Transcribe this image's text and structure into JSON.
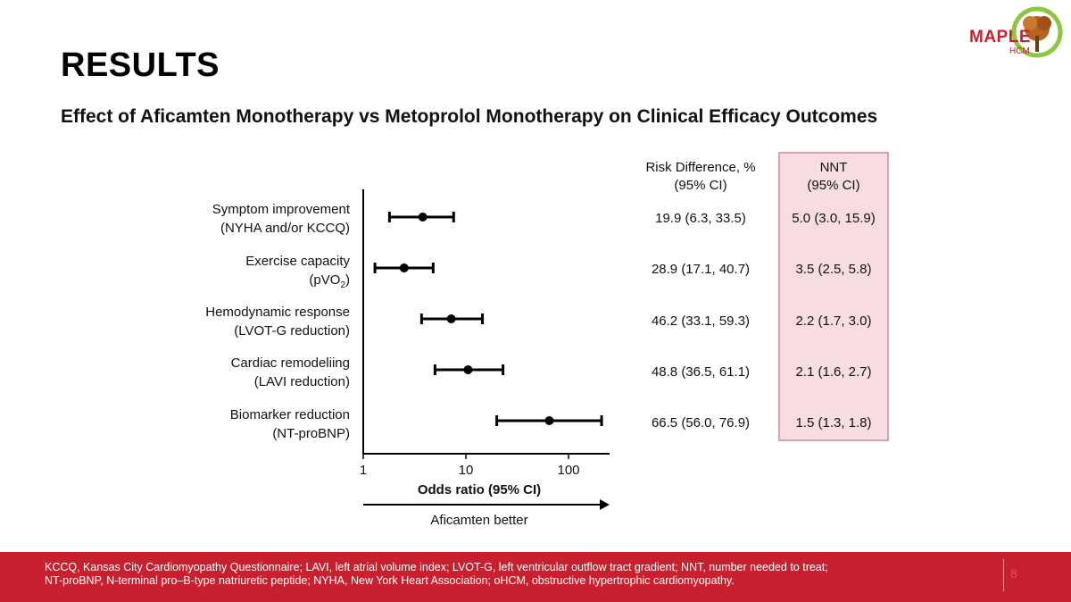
{
  "title": "RESULTS",
  "subtitle": "Effect of Aficamten Monotherapy vs Metoprolol Monotherapy on Clinical Efficacy Outcomes",
  "logo": {
    "word": "MAPLE",
    "sub": "HCM"
  },
  "colors": {
    "accent": "#c8202f",
    "nnt_fill": "#f7dde1",
    "nnt_border": "#d9a3ac"
  },
  "table_headers": {
    "risk_difference": [
      "Risk Difference, %",
      "(95% CI)"
    ],
    "nnt": [
      "NNT",
      "(95% CI)"
    ]
  },
  "chart_data": {
    "type": "forest",
    "xscale": "log",
    "xlim": [
      1,
      200
    ],
    "xticks": [
      1,
      10,
      100
    ],
    "xtick_labels": [
      "1",
      "10",
      "100"
    ],
    "xlabel": "Odds ratio (95% CI)",
    "direction_label": "Aficamten better",
    "outcomes": [
      {
        "label": [
          "Symptom improvement",
          "(NYHA and/or KCCQ)"
        ],
        "or": 3.8,
        "lo": 1.8,
        "hi": 7.6,
        "risk_difference": "19.9 (6.3, 33.5)",
        "nnt": "5.0 (3.0, 15.9)"
      },
      {
        "label": [
          "Exercise capacity",
          "(pVO2)"
        ],
        "or": 2.5,
        "lo": 1.3,
        "hi": 4.8,
        "risk_difference": "28.9 (17.1, 40.7)",
        "nnt": "3.5 (2.5, 5.8)"
      },
      {
        "label": [
          "Hemodynamic response",
          "(LVOT-G reduction)"
        ],
        "or": 7.2,
        "lo": 3.7,
        "hi": 14.5,
        "risk_difference": "46.2 (33.1, 59.3)",
        "nnt": "2.2 (1.7, 3.0)"
      },
      {
        "label": [
          "Cardiac remodeliing",
          "(LAVI reduction)"
        ],
        "or": 10.5,
        "lo": 5.0,
        "hi": 23.0,
        "risk_difference": "48.8 (36.5, 61.1)",
        "nnt": "2.1 (1.6, 2.7)"
      },
      {
        "label": [
          "Biomarker reduction",
          "(NT-proBNP)"
        ],
        "or": 65.0,
        "lo": 20.0,
        "hi": 210.0,
        "risk_difference": "66.5 (56.0, 76.9)",
        "nnt": "1.5 (1.3, 1.8)"
      }
    ]
  },
  "footnote": [
    "KCCQ, Kansas City Cardiomyopathy Questionnaire; LAVI, left atrial volume index; LVOT-G, left ventricular outflow tract gradient; NNT, number needed to treat;",
    "NT-proBNP, N-terminal pro–B-type natriuretic peptide; NYHA, New York Heart Association; oHCM, obstructive hypertrophic cardiomyopathy."
  ],
  "page_number": "8"
}
